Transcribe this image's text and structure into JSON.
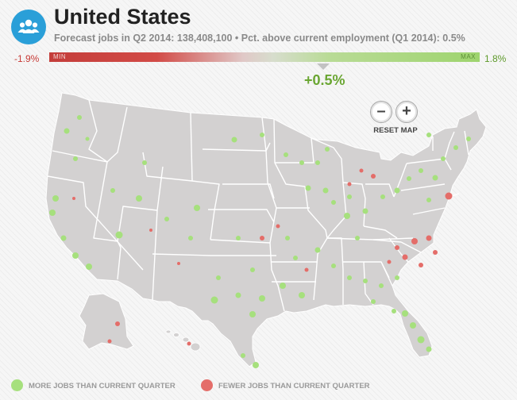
{
  "header": {
    "icon": "people-icon",
    "title": "United States",
    "subtitle": "Forecast jobs in Q2 2014: 138,408,100 • Pct. above current employment (Q1 2014): 0.5%"
  },
  "scale": {
    "min_value": "-1.9%",
    "max_value": "1.8%",
    "min_label": "MIN",
    "max_label": "MAX",
    "current_value": "+0.5%",
    "current_numeric": 0.5,
    "min_numeric": -1.9,
    "max_numeric": 1.8,
    "gradient_colors": [
      "#c43d3a",
      "#e0c8c7",
      "#9ed46e"
    ]
  },
  "map_controls": {
    "zoom_out_label": "–",
    "zoom_in_label": "+",
    "reset_label": "RESET MAP"
  },
  "legend": {
    "more": {
      "label": "MORE JOBS THAN CURRENT QUARTER",
      "color": "#a6e07d"
    },
    "fewer": {
      "label": "FEWER JOBS THAN CURRENT QUARTER",
      "color": "#e46d69"
    }
  },
  "colors": {
    "land": "#d3d1d1",
    "border": "#ffffff",
    "accent": "#2a9fd8"
  }
}
